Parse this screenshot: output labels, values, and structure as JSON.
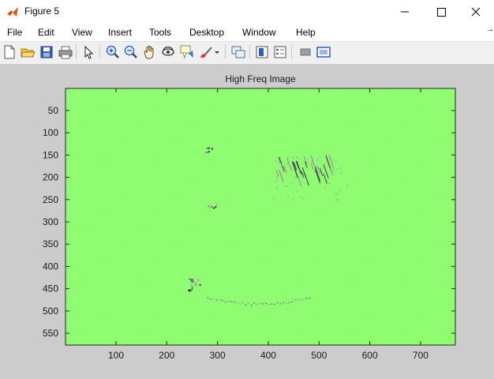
{
  "window": {
    "title": "Figure 5",
    "minimize_icon": "minimize-icon",
    "maximize_icon": "maximize-icon",
    "close_icon": "close-icon"
  },
  "menu": [
    "File",
    "Edit",
    "View",
    "Insert",
    "Tools",
    "Desktop",
    "Window",
    "Help"
  ],
  "menu_overflow": "→",
  "toolbar": {
    "icons": [
      "new-figure-icon",
      "open-file-icon",
      "save-icon",
      "print-icon",
      "select-arrow-icon",
      "zoom-in-icon",
      "zoom-out-icon",
      "pan-hand-icon",
      "rotate-3d-icon",
      "data-cursor-icon",
      "brush-icon",
      "brush-dropdown-icon",
      "link-plot-icon",
      "colorbar-icon",
      "legend-icon",
      "hide-plot-tools-icon",
      "show-plot-tools-icon"
    ]
  },
  "colors": {
    "figure_bg": "#cccccc",
    "image_bg": "#8ffc71",
    "toolbar_bg": "#f0f0f0"
  },
  "chart_data": {
    "type": "heatmap",
    "title": "High Freq Image",
    "xlabel": "",
    "ylabel": "",
    "xlim": [
      0.5,
      768.5
    ],
    "ylim": [
      576.5,
      0.5
    ],
    "y_reversed": true,
    "xticks": [
      100,
      200,
      300,
      400,
      500,
      600,
      700
    ],
    "yticks": [
      50,
      100,
      150,
      200,
      250,
      300,
      350,
      400,
      450,
      500,
      550
    ],
    "background_value_color": "#8ffc71",
    "features": [
      {
        "name": "streak-cluster",
        "x": [
          410,
          560
        ],
        "y": [
          150,
          250
        ]
      },
      {
        "name": "small-feature",
        "x": [
          280,
          300
        ],
        "y": [
          258,
          272
        ]
      },
      {
        "name": "small-feature",
        "x": [
          275,
          290
        ],
        "y": [
          130,
          145
        ]
      },
      {
        "name": "dot-cluster",
        "x": [
          240,
          265
        ],
        "y": [
          425,
          455
        ]
      },
      {
        "name": "faint-arc",
        "x": [
          280,
          480
        ],
        "y": [
          468,
          490
        ]
      }
    ]
  }
}
